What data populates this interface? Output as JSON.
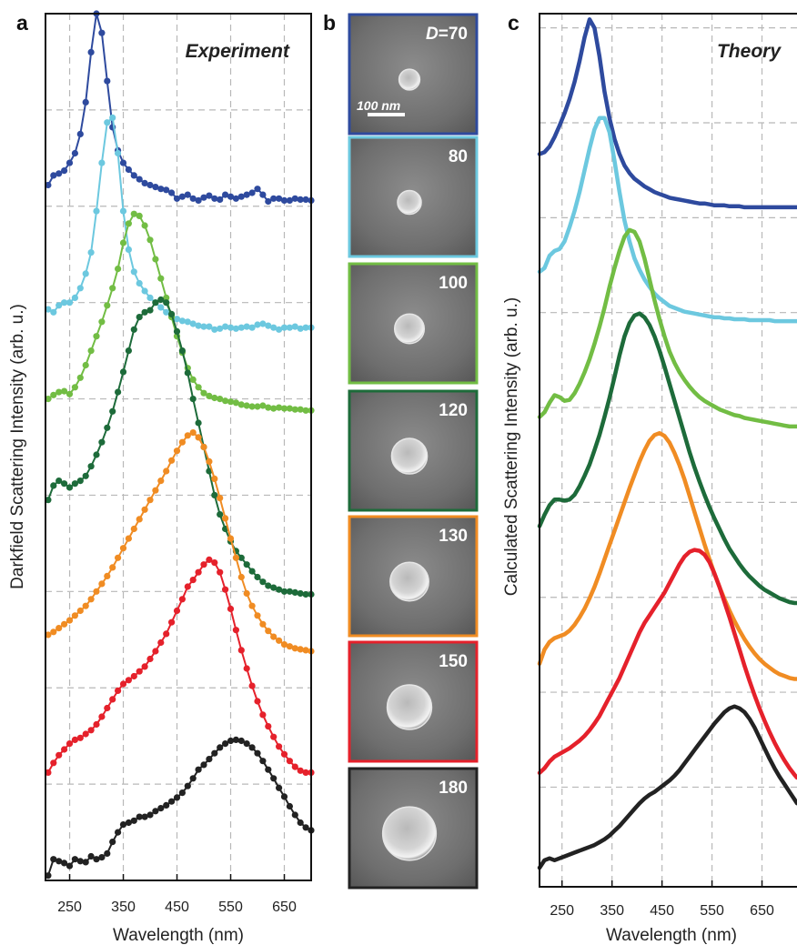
{
  "panels": {
    "a": {
      "letter": "a",
      "title": "Experiment",
      "ylabel": "Darkfield Scattering Intensity (arb. u.)",
      "xlabel": "Wavelength (nm)"
    },
    "b": {
      "letter": "b",
      "scale_bar": "100 nm"
    },
    "c": {
      "letter": "c",
      "title": "Theory",
      "ylabel": "Calculated Scattering Intensity (arb. u.)",
      "xlabel": "Wavelength (nm)"
    }
  },
  "insets": [
    {
      "label_prefix": "D",
      "label": "=70",
      "diameter": 70,
      "color": "#2e4a9e"
    },
    {
      "label": "80",
      "diameter": 80,
      "color": "#6cc8df"
    },
    {
      "label": "100",
      "diameter": 100,
      "color": "#72bd44"
    },
    {
      "label": "120",
      "diameter": 120,
      "color": "#1d6b3a"
    },
    {
      "label": "130",
      "diameter": 130,
      "color": "#f08c23"
    },
    {
      "label": "150",
      "diameter": 150,
      "color": "#e5212b"
    },
    {
      "label": "180",
      "diameter": 180,
      "color": "#222222"
    }
  ],
  "chart_data": [
    {
      "type": "line",
      "title": "Experiment",
      "xlabel": "Wavelength (nm)",
      "ylabel": "Darkfield Scattering Intensity (arb. u.)",
      "xlim": [
        205,
        700
      ],
      "ylim": [
        0,
        9.0
      ],
      "x_ticks": [
        250,
        350,
        450,
        550,
        650
      ],
      "y_grid_lines": [
        1.0,
        2.0,
        3.0,
        4.0,
        5.0,
        6.0,
        7.0,
        8.0
      ],
      "grid": true,
      "markers": true,
      "x": [
        210,
        220,
        230,
        240,
        250,
        260,
        270,
        280,
        290,
        300,
        310,
        320,
        330,
        340,
        350,
        360,
        370,
        380,
        390,
        400,
        410,
        420,
        430,
        440,
        450,
        460,
        470,
        480,
        490,
        500,
        510,
        520,
        530,
        540,
        550,
        560,
        570,
        580,
        590,
        600,
        610,
        620,
        630,
        640,
        650,
        660,
        670,
        680,
        690,
        700
      ],
      "series": [
        {
          "diameter": 70,
          "color": "#2e4a9e",
          "values": [
            7.22,
            7.32,
            7.34,
            7.37,
            7.45,
            7.55,
            7.75,
            8.08,
            8.6,
            9.0,
            8.8,
            8.3,
            7.82,
            7.58,
            7.45,
            7.38,
            7.32,
            7.28,
            7.24,
            7.22,
            7.2,
            7.18,
            7.17,
            7.14,
            7.08,
            7.1,
            7.12,
            7.08,
            7.06,
            7.09,
            7.11,
            7.08,
            7.07,
            7.12,
            7.1,
            7.08,
            7.1,
            7.12,
            7.14,
            7.18,
            7.12,
            7.05,
            7.08,
            7.08,
            7.06,
            7.06,
            7.08,
            7.07,
            7.07,
            7.06
          ]
        },
        {
          "diameter": 80,
          "color": "#6cc8df",
          "values": [
            5.93,
            5.9,
            5.97,
            6.0,
            6.0,
            6.05,
            6.15,
            6.3,
            6.52,
            6.95,
            7.45,
            7.87,
            7.92,
            7.55,
            6.95,
            6.55,
            6.32,
            6.2,
            6.12,
            6.05,
            6.0,
            5.95,
            5.9,
            5.86,
            5.83,
            5.81,
            5.8,
            5.78,
            5.76,
            5.75,
            5.75,
            5.72,
            5.73,
            5.75,
            5.74,
            5.73,
            5.74,
            5.75,
            5.74,
            5.77,
            5.78,
            5.76,
            5.74,
            5.72,
            5.74,
            5.74,
            5.75,
            5.73,
            5.74,
            5.74
          ]
        },
        {
          "diameter": 100,
          "color": "#72bd44",
          "values": [
            5.0,
            5.04,
            5.07,
            5.08,
            5.05,
            5.12,
            5.22,
            5.35,
            5.5,
            5.65,
            5.8,
            5.97,
            6.15,
            6.35,
            6.62,
            6.82,
            6.92,
            6.9,
            6.8,
            6.65,
            6.45,
            6.25,
            6.05,
            5.85,
            5.65,
            5.48,
            5.32,
            5.2,
            5.12,
            5.06,
            5.03,
            5.01,
            5.0,
            4.98,
            4.97,
            4.96,
            4.94,
            4.93,
            4.92,
            4.92,
            4.93,
            4.91,
            4.9,
            4.91,
            4.9,
            4.9,
            4.89,
            4.89,
            4.88,
            4.88
          ]
        },
        {
          "diameter": 120,
          "color": "#1d6b3a",
          "values": [
            3.95,
            4.1,
            4.15,
            4.12,
            4.08,
            4.12,
            4.15,
            4.2,
            4.3,
            4.42,
            4.55,
            4.7,
            4.87,
            5.07,
            5.28,
            5.5,
            5.72,
            5.85,
            5.9,
            5.92,
            6.0,
            6.03,
            6.0,
            5.88,
            5.7,
            5.5,
            5.27,
            5.0,
            4.75,
            4.5,
            4.25,
            4.0,
            3.8,
            3.65,
            3.52,
            3.42,
            3.35,
            3.28,
            3.21,
            3.15,
            3.1,
            3.06,
            3.04,
            3.02,
            3.0,
            3.0,
            2.99,
            2.98,
            2.97,
            2.97
          ]
        },
        {
          "diameter": 130,
          "color": "#f08c23",
          "values": [
            2.55,
            2.58,
            2.62,
            2.66,
            2.7,
            2.75,
            2.8,
            2.85,
            2.92,
            3.0,
            3.08,
            3.16,
            3.25,
            3.35,
            3.45,
            3.55,
            3.65,
            3.75,
            3.85,
            3.95,
            4.05,
            4.15,
            4.25,
            4.36,
            4.46,
            4.55,
            4.62,
            4.65,
            4.6,
            4.5,
            4.35,
            4.17,
            3.97,
            3.76,
            3.55,
            3.35,
            3.15,
            2.98,
            2.85,
            2.75,
            2.66,
            2.59,
            2.53,
            2.49,
            2.45,
            2.43,
            2.41,
            2.4,
            2.39,
            2.38
          ]
        },
        {
          "diameter": 150,
          "color": "#e5212b",
          "values": [
            1.12,
            1.22,
            1.3,
            1.36,
            1.42,
            1.46,
            1.48,
            1.52,
            1.56,
            1.62,
            1.7,
            1.79,
            1.88,
            1.97,
            2.04,
            2.08,
            2.12,
            2.17,
            2.22,
            2.3,
            2.38,
            2.47,
            2.56,
            2.68,
            2.8,
            2.92,
            3.05,
            3.12,
            3.2,
            3.28,
            3.33,
            3.3,
            3.2,
            3.02,
            2.82,
            2.6,
            2.39,
            2.2,
            2.02,
            1.86,
            1.72,
            1.6,
            1.49,
            1.39,
            1.31,
            1.24,
            1.18,
            1.14,
            1.12,
            1.12
          ]
        },
        {
          "diameter": 180,
          "color": "#222222",
          "values": [
            0.05,
            0.22,
            0.2,
            0.18,
            0.15,
            0.22,
            0.2,
            0.19,
            0.25,
            0.22,
            0.24,
            0.28,
            0.4,
            0.5,
            0.58,
            0.6,
            0.62,
            0.66,
            0.66,
            0.68,
            0.72,
            0.75,
            0.78,
            0.82,
            0.86,
            0.91,
            0.98,
            1.06,
            1.15,
            1.2,
            1.26,
            1.32,
            1.38,
            1.42,
            1.45,
            1.46,
            1.45,
            1.42,
            1.38,
            1.32,
            1.24,
            1.15,
            1.06,
            0.96,
            0.87,
            0.77,
            0.68,
            0.6,
            0.55,
            0.52
          ]
        }
      ]
    },
    {
      "type": "line",
      "title": "Theory",
      "xlabel": "Wavelength (nm)",
      "ylabel": "Calculated Scattering Intensity (arb. u.)",
      "xlim": [
        205,
        720
      ],
      "ylim": [
        0,
        9.2
      ],
      "x_ticks": [
        250,
        350,
        450,
        550,
        650
      ],
      "y_grid_lines": [
        1.05,
        2.05,
        3.05,
        4.05,
        5.05,
        6.05,
        7.05,
        8.05,
        9.05
      ],
      "grid": true,
      "markers": false,
      "x": [
        205,
        215,
        225,
        235,
        245,
        255,
        265,
        275,
        285,
        295,
        305,
        315,
        325,
        335,
        345,
        355,
        365,
        375,
        385,
        395,
        405,
        415,
        425,
        435,
        445,
        455,
        465,
        475,
        485,
        495,
        505,
        515,
        525,
        535,
        545,
        555,
        565,
        575,
        585,
        595,
        605,
        615,
        625,
        635,
        645,
        655,
        665,
        675,
        685,
        695,
        705,
        715,
        720
      ],
      "series": [
        {
          "diameter": 70,
          "color": "#2e4a9e",
          "values": [
            7.72,
            7.74,
            7.8,
            7.9,
            8.02,
            8.15,
            8.3,
            8.48,
            8.7,
            8.95,
            9.14,
            9.05,
            8.75,
            8.38,
            8.1,
            7.88,
            7.72,
            7.6,
            7.52,
            7.46,
            7.42,
            7.38,
            7.35,
            7.32,
            7.3,
            7.28,
            7.26,
            7.25,
            7.24,
            7.23,
            7.22,
            7.21,
            7.2,
            7.2,
            7.19,
            7.18,
            7.18,
            7.18,
            7.17,
            7.17,
            7.17,
            7.16,
            7.16,
            7.16,
            7.16,
            7.16,
            7.16,
            7.16,
            7.16,
            7.16,
            7.16,
            7.16,
            7.16
          ]
        },
        {
          "diameter": 80,
          "color": "#6cc8df",
          "values": [
            6.48,
            6.52,
            6.65,
            6.7,
            6.72,
            6.8,
            6.95,
            7.12,
            7.32,
            7.55,
            7.78,
            7.98,
            8.1,
            8.1,
            7.95,
            7.65,
            7.32,
            7.02,
            6.8,
            6.62,
            6.5,
            6.4,
            6.32,
            6.25,
            6.2,
            6.16,
            6.12,
            6.1,
            6.08,
            6.06,
            6.05,
            6.04,
            6.03,
            6.02,
            6.01,
            6.0,
            6.0,
            5.99,
            5.99,
            5.98,
            5.98,
            5.98,
            5.97,
            5.97,
            5.97,
            5.97,
            5.97,
            5.96,
            5.96,
            5.96,
            5.96,
            5.96,
            5.96
          ]
        },
        {
          "diameter": 100,
          "color": "#72bd44",
          "values": [
            4.95,
            5.0,
            5.1,
            5.18,
            5.16,
            5.12,
            5.13,
            5.2,
            5.3,
            5.42,
            5.56,
            5.72,
            5.9,
            6.1,
            6.32,
            6.52,
            6.7,
            6.85,
            6.92,
            6.9,
            6.8,
            6.62,
            6.4,
            6.18,
            5.98,
            5.8,
            5.64,
            5.52,
            5.42,
            5.34,
            5.27,
            5.21,
            5.16,
            5.12,
            5.09,
            5.06,
            5.03,
            5.01,
            4.99,
            4.97,
            4.96,
            4.94,
            4.93,
            4.92,
            4.91,
            4.9,
            4.89,
            4.88,
            4.87,
            4.86,
            4.85,
            4.85,
            4.85
          ]
        },
        {
          "diameter": 120,
          "color": "#1d6b3a",
          "values": [
            3.8,
            3.92,
            4.02,
            4.08,
            4.08,
            4.07,
            4.08,
            4.13,
            4.22,
            4.33,
            4.45,
            4.6,
            4.76,
            4.95,
            5.15,
            5.37,
            5.6,
            5.8,
            5.94,
            6.02,
            6.04,
            6.0,
            5.92,
            5.8,
            5.65,
            5.48,
            5.3,
            5.12,
            4.94,
            4.76,
            4.58,
            4.42,
            4.27,
            4.13,
            4.0,
            3.88,
            3.77,
            3.66,
            3.56,
            3.48,
            3.4,
            3.33,
            3.27,
            3.22,
            3.17,
            3.13,
            3.1,
            3.07,
            3.04,
            3.02,
            3.0,
            2.99,
            2.99
          ]
        },
        {
          "diameter": 130,
          "color": "#f08c23",
          "values": [
            2.35,
            2.5,
            2.58,
            2.62,
            2.64,
            2.66,
            2.7,
            2.76,
            2.84,
            2.93,
            3.04,
            3.16,
            3.3,
            3.45,
            3.6,
            3.75,
            3.9,
            4.05,
            4.2,
            4.34,
            4.48,
            4.6,
            4.7,
            4.76,
            4.78,
            4.75,
            4.68,
            4.57,
            4.44,
            4.29,
            4.12,
            3.95,
            3.78,
            3.61,
            3.45,
            3.3,
            3.16,
            3.03,
            2.91,
            2.8,
            2.7,
            2.61,
            2.53,
            2.46,
            2.4,
            2.35,
            2.31,
            2.27,
            2.24,
            2.22,
            2.2,
            2.19,
            2.19
          ]
        },
        {
          "diameter": 150,
          "color": "#e5212b",
          "values": [
            1.2,
            1.25,
            1.32,
            1.37,
            1.4,
            1.43,
            1.46,
            1.5,
            1.54,
            1.59,
            1.65,
            1.72,
            1.8,
            1.9,
            2.0,
            2.1,
            2.2,
            2.32,
            2.44,
            2.56,
            2.68,
            2.78,
            2.86,
            2.94,
            3.02,
            3.1,
            3.2,
            3.3,
            3.4,
            3.48,
            3.53,
            3.55,
            3.54,
            3.5,
            3.42,
            3.3,
            3.16,
            3.0,
            2.84,
            2.67,
            2.5,
            2.33,
            2.17,
            2.02,
            1.88,
            1.75,
            1.63,
            1.52,
            1.42,
            1.33,
            1.25,
            1.18,
            1.15
          ]
        },
        {
          "diameter": 180,
          "color": "#222222",
          "values": [
            0.2,
            0.28,
            0.3,
            0.28,
            0.3,
            0.32,
            0.34,
            0.36,
            0.38,
            0.4,
            0.42,
            0.44,
            0.47,
            0.5,
            0.54,
            0.59,
            0.64,
            0.7,
            0.76,
            0.82,
            0.88,
            0.93,
            0.97,
            1.0,
            1.04,
            1.08,
            1.12,
            1.17,
            1.23,
            1.3,
            1.37,
            1.44,
            1.51,
            1.58,
            1.65,
            1.72,
            1.78,
            1.84,
            1.88,
            1.9,
            1.88,
            1.84,
            1.77,
            1.68,
            1.57,
            1.46,
            1.35,
            1.25,
            1.16,
            1.08,
            1.0,
            0.92,
            0.88
          ]
        }
      ]
    }
  ]
}
